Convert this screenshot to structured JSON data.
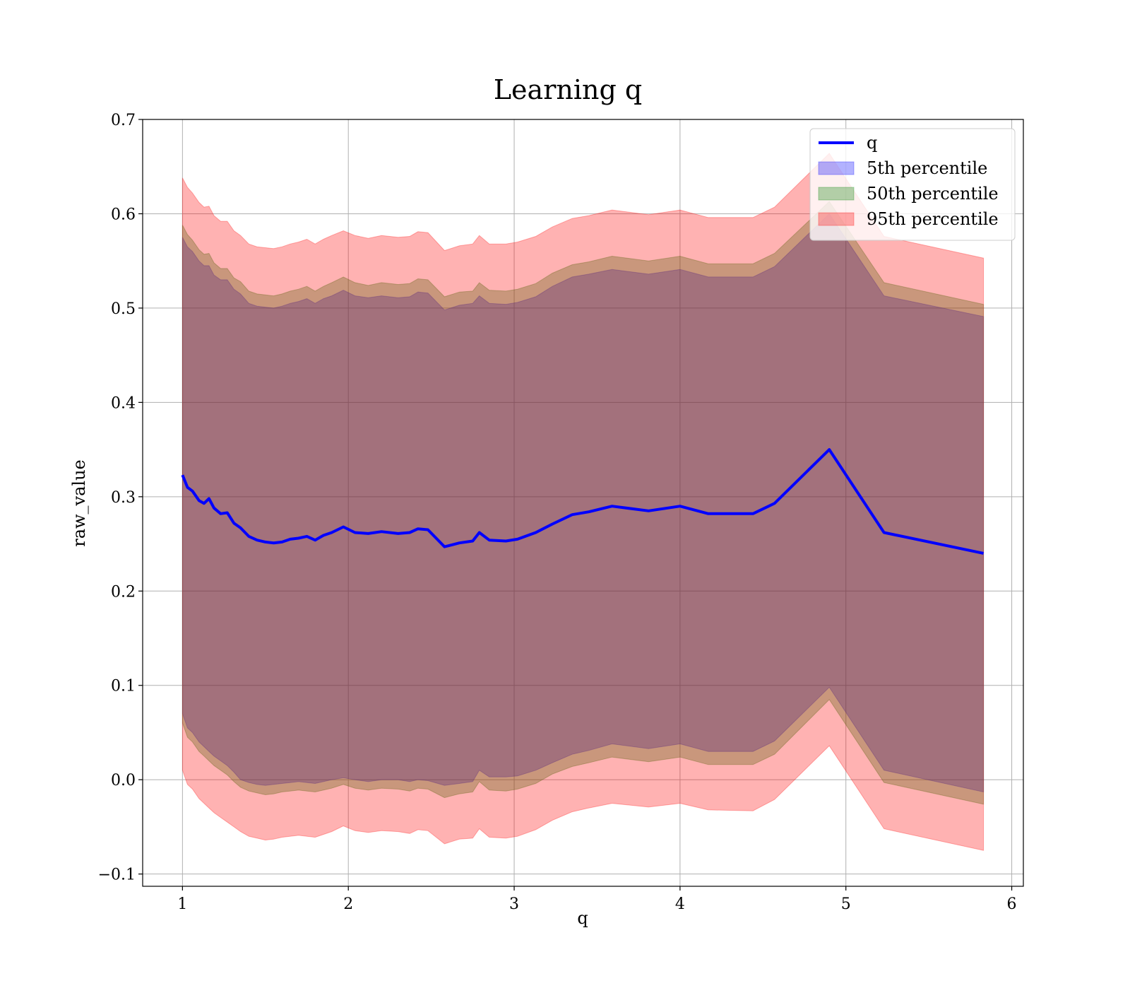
{
  "chart_data": {
    "type": "area",
    "title": "Learning q",
    "xlabel": "q",
    "ylabel": "raw_value",
    "xlim": [
      0.76,
      6.07
    ],
    "ylim": [
      -0.113,
      0.7
    ],
    "grid": true,
    "legend_position": "top-right",
    "xticks": [
      1,
      2,
      3,
      4,
      5,
      6
    ],
    "xtick_labels": [
      "1",
      "2",
      "3",
      "4",
      "5",
      "6"
    ],
    "yticks": [
      -0.1,
      0.0,
      0.1,
      0.2,
      0.3,
      0.4,
      0.5,
      0.6,
      0.7
    ],
    "ytick_labels": [
      "−0.1",
      "0.0",
      "0.1",
      "0.2",
      "0.3",
      "0.4",
      "0.5",
      "0.6",
      "0.7"
    ],
    "x": [
      1.0,
      1.03,
      1.06,
      1.1,
      1.13,
      1.16,
      1.19,
      1.23,
      1.27,
      1.31,
      1.35,
      1.4,
      1.45,
      1.5,
      1.55,
      1.6,
      1.65,
      1.7,
      1.75,
      1.8,
      1.85,
      1.9,
      1.97,
      2.04,
      2.12,
      2.2,
      2.3,
      2.37,
      2.42,
      2.48,
      2.58,
      2.67,
      2.75,
      2.79,
      2.85,
      2.95,
      3.02,
      3.13,
      3.23,
      3.35,
      3.45,
      3.59,
      3.81,
      4.0,
      4.17,
      4.44,
      4.57,
      4.9,
      5.23,
      5.83
    ],
    "series": [
      {
        "name": "q",
        "kind": "line",
        "color": "#0000ff",
        "values": [
          0.323,
          0.31,
          0.306,
          0.296,
          0.293,
          0.298,
          0.288,
          0.282,
          0.283,
          0.272,
          0.267,
          0.258,
          0.254,
          0.252,
          0.251,
          0.252,
          0.255,
          0.256,
          0.258,
          0.254,
          0.259,
          0.262,
          0.268,
          0.262,
          0.261,
          0.263,
          0.261,
          0.262,
          0.266,
          0.265,
          0.247,
          0.251,
          0.253,
          0.262,
          0.254,
          0.253,
          0.255,
          0.262,
          0.271,
          0.281,
          0.284,
          0.29,
          0.285,
          0.29,
          0.282,
          0.282,
          0.293,
          0.35,
          0.262,
          0.24
        ]
      },
      {
        "name": "5th percentile",
        "kind": "band",
        "color": "#0000ff",
        "opacity": 0.3,
        "lower": [
          0.07,
          0.055,
          0.05,
          0.04,
          0.035,
          0.03,
          0.025,
          0.02,
          0.015,
          0.008,
          0.0,
          -0.003,
          -0.005,
          -0.006,
          -0.005,
          -0.004,
          -0.003,
          -0.002,
          -0.003,
          -0.004,
          -0.002,
          0.0,
          0.002,
          0.0,
          -0.002,
          0.0,
          0.0,
          -0.002,
          0.0,
          -0.001,
          -0.006,
          -0.004,
          -0.002,
          0.01,
          0.003,
          0.003,
          0.004,
          0.01,
          0.018,
          0.027,
          0.031,
          0.038,
          0.033,
          0.038,
          0.03,
          0.03,
          0.041,
          0.098,
          0.01,
          -0.013
        ],
        "upper": [
          0.575,
          0.565,
          0.56,
          0.55,
          0.545,
          0.545,
          0.535,
          0.53,
          0.53,
          0.52,
          0.515,
          0.505,
          0.502,
          0.501,
          0.5,
          0.502,
          0.505,
          0.507,
          0.51,
          0.505,
          0.51,
          0.513,
          0.519,
          0.513,
          0.511,
          0.513,
          0.511,
          0.512,
          0.517,
          0.516,
          0.498,
          0.503,
          0.505,
          0.513,
          0.505,
          0.504,
          0.506,
          0.512,
          0.523,
          0.533,
          0.536,
          0.541,
          0.536,
          0.541,
          0.533,
          0.533,
          0.544,
          0.6,
          0.513,
          0.491
        ]
      },
      {
        "name": "50th percentile",
        "kind": "band",
        "color": "#008000",
        "opacity": 0.3,
        "lower": [
          0.06,
          0.045,
          0.04,
          0.03,
          0.025,
          0.02,
          0.015,
          0.01,
          0.005,
          -0.002,
          -0.008,
          -0.012,
          -0.014,
          -0.016,
          -0.015,
          -0.013,
          -0.012,
          -0.011,
          -0.012,
          -0.013,
          -0.011,
          -0.009,
          -0.005,
          -0.009,
          -0.011,
          -0.009,
          -0.01,
          -0.012,
          -0.009,
          -0.01,
          -0.019,
          -0.015,
          -0.013,
          -0.002,
          -0.011,
          -0.012,
          -0.01,
          -0.004,
          0.006,
          0.014,
          0.018,
          0.024,
          0.019,
          0.024,
          0.016,
          0.016,
          0.027,
          0.085,
          -0.003,
          -0.026
        ],
        "upper": [
          0.588,
          0.578,
          0.572,
          0.562,
          0.557,
          0.558,
          0.548,
          0.542,
          0.542,
          0.532,
          0.528,
          0.518,
          0.515,
          0.514,
          0.513,
          0.515,
          0.518,
          0.52,
          0.523,
          0.518,
          0.523,
          0.527,
          0.533,
          0.527,
          0.524,
          0.527,
          0.525,
          0.526,
          0.531,
          0.53,
          0.512,
          0.517,
          0.518,
          0.527,
          0.519,
          0.518,
          0.52,
          0.526,
          0.537,
          0.546,
          0.549,
          0.555,
          0.55,
          0.555,
          0.547,
          0.547,
          0.558,
          0.613,
          0.527,
          0.504
        ]
      },
      {
        "name": "95th percentile",
        "kind": "band",
        "color": "#ff0000",
        "opacity": 0.3,
        "lower": [
          0.01,
          -0.005,
          -0.01,
          -0.02,
          -0.025,
          -0.03,
          -0.035,
          -0.04,
          -0.045,
          -0.05,
          -0.055,
          -0.06,
          -0.062,
          -0.064,
          -0.063,
          -0.061,
          -0.06,
          -0.059,
          -0.06,
          -0.061,
          -0.058,
          -0.055,
          -0.049,
          -0.054,
          -0.056,
          -0.054,
          -0.055,
          -0.057,
          -0.053,
          -0.054,
          -0.068,
          -0.063,
          -0.062,
          -0.052,
          -0.061,
          -0.062,
          -0.06,
          -0.053,
          -0.043,
          -0.034,
          -0.03,
          -0.025,
          -0.029,
          -0.025,
          -0.032,
          -0.033,
          -0.021,
          0.036,
          -0.052,
          -0.075
        ],
        "upper": [
          0.638,
          0.628,
          0.622,
          0.612,
          0.607,
          0.608,
          0.598,
          0.592,
          0.592,
          0.582,
          0.577,
          0.568,
          0.565,
          0.564,
          0.563,
          0.565,
          0.568,
          0.57,
          0.573,
          0.568,
          0.573,
          0.577,
          0.582,
          0.577,
          0.574,
          0.577,
          0.575,
          0.576,
          0.581,
          0.58,
          0.561,
          0.566,
          0.568,
          0.577,
          0.568,
          0.568,
          0.57,
          0.576,
          0.586,
          0.595,
          0.598,
          0.604,
          0.599,
          0.604,
          0.596,
          0.596,
          0.607,
          0.664,
          0.576,
          0.553
        ]
      }
    ]
  }
}
